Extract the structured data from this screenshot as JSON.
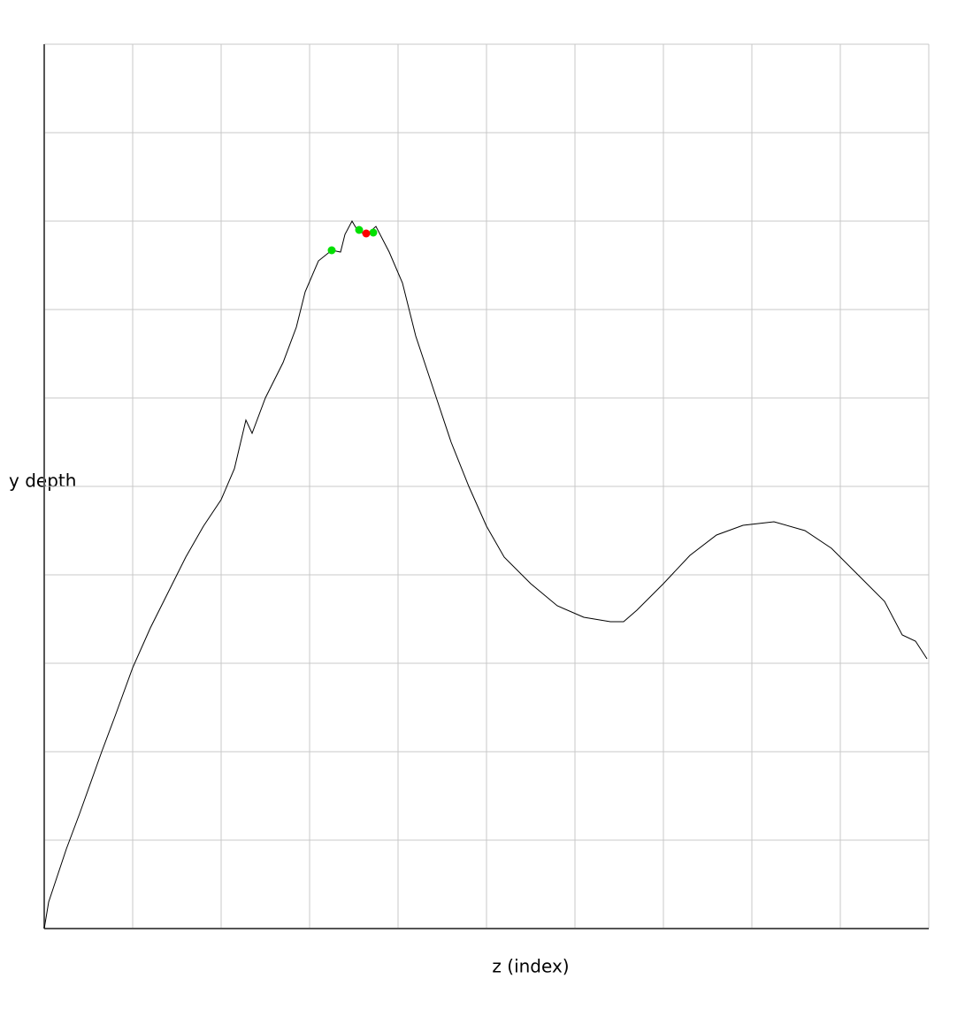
{
  "chart_data": {
    "type": "line",
    "x_label": "z (index)",
    "y_label": "y depth",
    "xlim": [
      0,
      1000
    ],
    "ylim": [
      0,
      1000
    ],
    "xticks": [
      0,
      100,
      200,
      300,
      400,
      500,
      600,
      700,
      800,
      900,
      1000
    ],
    "yticks": [
      0,
      100,
      200,
      300,
      400,
      500,
      600,
      700,
      800,
      900,
      1000
    ],
    "grid": true,
    "x": [
      0,
      5,
      15,
      25,
      40,
      65,
      80,
      100,
      120,
      140,
      160,
      180,
      200,
      215,
      228,
      235,
      250,
      270,
      285,
      295,
      310,
      325,
      335,
      340,
      348,
      355,
      365,
      375,
      390,
      405,
      420,
      440,
      460,
      480,
      500,
      520,
      550,
      580,
      610,
      640,
      655,
      670,
      700,
      730,
      760,
      790,
      825,
      860,
      890,
      920,
      950,
      970,
      985,
      998
    ],
    "series": [
      {
        "color": "#000000",
        "values": [
          0,
          30,
          60,
          90,
          130,
          200,
          240,
          295,
          340,
          380,
          420,
          455,
          485,
          520,
          575,
          560,
          600,
          640,
          680,
          720,
          755,
          767,
          765,
          785,
          800,
          788,
          785,
          794,
          765,
          730,
          670,
          610,
          550,
          500,
          455,
          420,
          390,
          365,
          352,
          347,
          347,
          360,
          390,
          422,
          445,
          456,
          460,
          450,
          430,
          400,
          370,
          332,
          325,
          305
        ]
      }
    ],
    "markers": [
      {
        "color": "#00e000",
        "x": [
          325,
          356,
          372
        ],
        "y": [
          767,
          790,
          787
        ]
      },
      {
        "color": "#ff0000",
        "x": [
          364
        ],
        "y": [
          786
        ]
      }
    ]
  }
}
